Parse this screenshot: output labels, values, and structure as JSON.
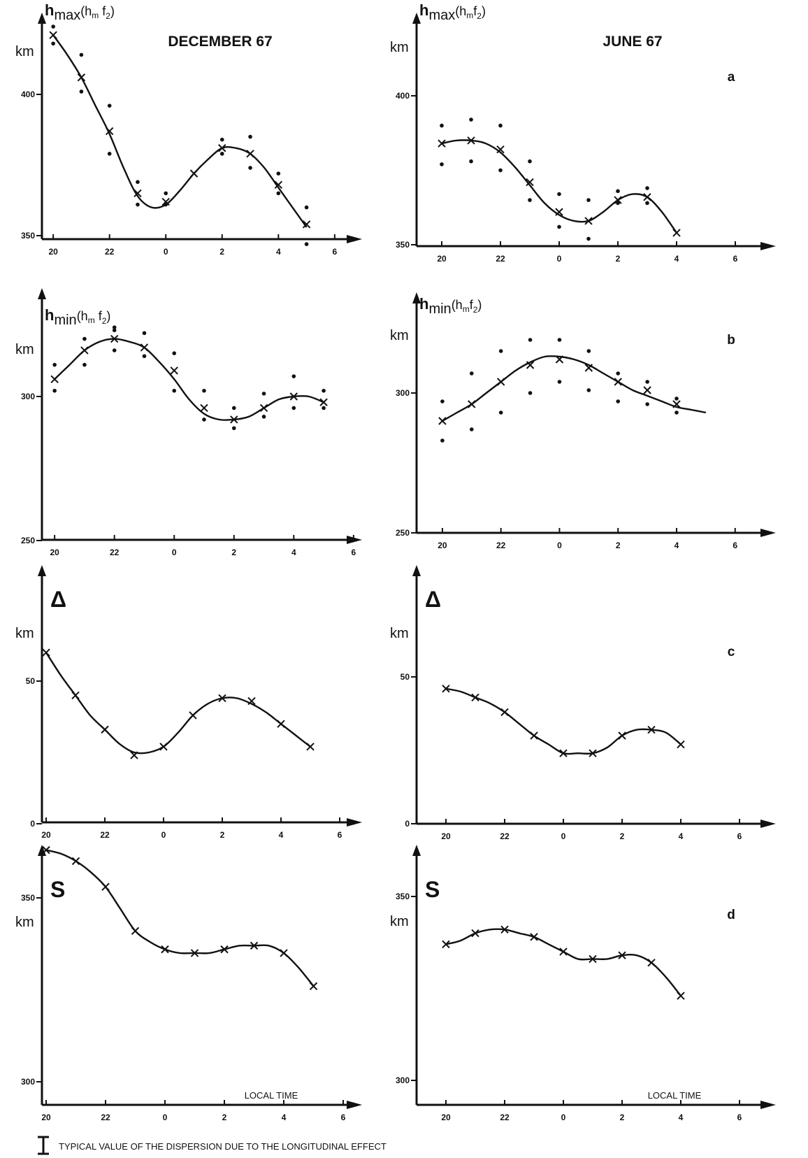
{
  "figure": {
    "footnote_marker": "I",
    "footnote": "TYPICAL VALUE OF THE DISPERSION DUE TO THE LONGITUDINAL EFFECT"
  },
  "chart_data": [
    {
      "id": "dec-a",
      "type": "line",
      "header": "DECEMBER 67",
      "panel_letter": "",
      "ylabel_main": "h",
      "ylabel_sub": "max",
      "ylabel_tail": "(h",
      "ylabel_m": "m",
      "ylabel_f": " f",
      "ylabel_2": "2",
      "ylabel_close": ")",
      "yunit": "km",
      "xlabel": "",
      "x_ticks": [
        "20",
        "22",
        "0",
        "2",
        "4",
        "6"
      ],
      "x_tick_values": [
        20,
        22,
        24,
        26,
        28,
        30
      ],
      "xlim": [
        19.5,
        31.5
      ],
      "y_ticks": [
        "400",
        "350"
      ],
      "y_tick_values": [
        400,
        350
      ],
      "ylim": [
        347,
        423
      ],
      "series": [
        {
          "curve_x": [
            20,
            20.5,
            21,
            21.5,
            22,
            22.5,
            23,
            23.5,
            24,
            24.5,
            25,
            25.5,
            26,
            26.5,
            27,
            27.5,
            28,
            28.5,
            29
          ],
          "curve_y": [
            421,
            414,
            406,
            396,
            386,
            374,
            364,
            360,
            361,
            366,
            372,
            377,
            381,
            381,
            379,
            374,
            367,
            360,
            353
          ],
          "crosses_x": [
            20,
            21,
            22,
            23,
            24,
            25,
            26,
            27,
            28,
            29
          ],
          "crosses_y": [
            421,
            406,
            387,
            365,
            362,
            372,
            381,
            379,
            368,
            354
          ]
        }
      ],
      "scatter": {
        "x": [
          20,
          20,
          21,
          21,
          22,
          22,
          23,
          23,
          24,
          24,
          26,
          26,
          27,
          27,
          28,
          28,
          29,
          29
        ],
        "y": [
          424,
          418,
          414,
          401,
          396,
          379,
          369,
          361,
          365,
          361,
          384,
          379,
          385,
          374,
          372,
          365,
          360,
          347
        ]
      }
    },
    {
      "id": "jun-a",
      "type": "line",
      "header": "JUNE 67",
      "panel_letter": "a",
      "ylabel_main": "h",
      "ylabel_sub": "max",
      "ylabel_tail": "(h",
      "ylabel_m": "m",
      "ylabel_f": "f",
      "ylabel_2": "2",
      "ylabel_close": ")",
      "yunit": "km",
      "xlabel": "",
      "x_ticks": [
        "20",
        "22",
        "0",
        "2",
        "4",
        "6"
      ],
      "x_tick_values": [
        20,
        22,
        24,
        26,
        28,
        30
      ],
      "xlim": [
        19.5,
        31.5
      ],
      "y_ticks": [
        "400",
        "350"
      ],
      "y_tick_values": [
        400,
        350
      ],
      "ylim": [
        349,
        422
      ],
      "series": [
        {
          "curve_x": [
            20,
            20.5,
            21,
            21.5,
            22,
            22.5,
            23,
            23.5,
            24,
            24.5,
            25,
            25.5,
            26,
            26.5,
            27,
            27.5,
            28
          ],
          "curve_y": [
            384,
            385,
            385,
            384,
            381,
            376,
            370,
            364,
            360,
            358,
            358,
            361,
            365,
            367,
            366,
            361,
            354
          ],
          "crosses_x": [
            20,
            21,
            22,
            23,
            24,
            25,
            26,
            27,
            28
          ],
          "crosses_y": [
            384,
            385,
            382,
            371,
            361,
            358,
            365,
            366,
            354
          ]
        }
      ],
      "scatter": {
        "x": [
          20,
          20,
          21,
          21,
          22,
          22,
          23,
          23,
          24,
          24,
          25,
          25,
          26,
          26,
          27,
          27
        ],
        "y": [
          390,
          377,
          392,
          378,
          390,
          375,
          378,
          365,
          367,
          356,
          365,
          352,
          368,
          364,
          369,
          364
        ]
      }
    },
    {
      "id": "dec-b",
      "type": "line",
      "header": "",
      "panel_letter": "",
      "ylabel_main": "h",
      "ylabel_sub": "min",
      "ylabel_tail": "(h",
      "ylabel_m": "m",
      "ylabel_f": " f",
      "ylabel_2": "2",
      "ylabel_close": ")",
      "yunit": "km",
      "xlabel": "",
      "x_ticks": [
        "20",
        "22",
        "0",
        "2",
        "4",
        "6"
      ],
      "x_tick_values": [
        20,
        22,
        24,
        26,
        28,
        30
      ],
      "xlim": [
        19.5,
        31.5
      ],
      "y_ticks": [
        "300",
        "250"
      ],
      "y_tick_values": [
        300,
        250
      ],
      "ylim": [
        250,
        322
      ],
      "series": [
        {
          "curve_x": [
            20,
            20.5,
            21,
            21.5,
            22,
            22.5,
            23,
            23.5,
            24,
            24.5,
            25,
            25.5,
            26,
            26.5,
            27,
            27.5,
            28,
            28.5,
            29
          ],
          "curve_y": [
            306,
            311,
            316,
            319,
            320,
            319,
            317,
            312,
            306,
            299,
            294,
            292,
            292,
            293,
            296,
            299,
            300,
            300,
            298
          ],
          "crosses_x": [
            20,
            21,
            22,
            23,
            24,
            25,
            26,
            27,
            28,
            29
          ],
          "crosses_y": [
            306,
            316,
            320,
            317,
            309,
            296,
            292,
            296,
            300,
            298
          ]
        }
      ],
      "scatter": {
        "x": [
          20,
          20,
          21,
          21,
          22,
          22,
          22,
          23,
          23,
          24,
          24,
          25,
          25,
          26,
          26,
          27,
          27,
          28,
          28,
          29,
          29
        ],
        "y": [
          311,
          302,
          320,
          311,
          324,
          316,
          323,
          322,
          314,
          315,
          302,
          302,
          292,
          296,
          289,
          301,
          293,
          307,
          296,
          302,
          296
        ]
      }
    },
    {
      "id": "jun-b",
      "type": "line",
      "header": "",
      "panel_letter": "b",
      "ylabel_main": "h",
      "ylabel_sub": "min",
      "ylabel_tail": "(h",
      "ylabel_m": "m",
      "ylabel_f": "f",
      "ylabel_2": "2",
      "ylabel_close": ")",
      "yunit": "km",
      "xlabel": "",
      "x_ticks": [
        "20",
        "22",
        "0",
        "2",
        "4",
        "6"
      ],
      "x_tick_values": [
        20,
        22,
        24,
        26,
        28,
        30
      ],
      "xlim": [
        19.5,
        31.5
      ],
      "y_ticks": [
        "300",
        "250"
      ],
      "y_tick_values": [
        300,
        250
      ],
      "ylim": [
        249,
        320
      ],
      "series": [
        {
          "curve_x": [
            20,
            20.5,
            21,
            21.5,
            22,
            22.5,
            23,
            23.5,
            24,
            24.5,
            25,
            25.5,
            26,
            26.5,
            27,
            27.5,
            28,
            28.5,
            29
          ],
          "curve_y": [
            290,
            293,
            296,
            300,
            304,
            308,
            311,
            313,
            313,
            312,
            310,
            307,
            304,
            301,
            299,
            297,
            295,
            294,
            293
          ],
          "crosses_x": [
            20,
            21,
            22,
            23,
            24,
            25,
            26,
            27,
            28
          ],
          "crosses_y": [
            290,
            296,
            304,
            310,
            312,
            309,
            304,
            301,
            296
          ]
        }
      ],
      "scatter": {
        "x": [
          20,
          20,
          21,
          21,
          22,
          22,
          23,
          23,
          24,
          24,
          25,
          25,
          26,
          26,
          27,
          27,
          28,
          28
        ],
        "y": [
          297,
          283,
          307,
          287,
          315,
          293,
          319,
          300,
          319,
          304,
          315,
          301,
          307,
          297,
          304,
          296,
          298,
          293
        ]
      }
    },
    {
      "id": "dec-c",
      "type": "line",
      "header": "",
      "panel_letter": "",
      "ylabel_main": "Δ",
      "yunit": "km",
      "xlabel": "",
      "x_ticks": [
        "20",
        "22",
        "0",
        "2",
        "4",
        "6"
      ],
      "x_tick_values": [
        20,
        22,
        24,
        26,
        28,
        30
      ],
      "xlim": [
        19.5,
        31.5
      ],
      "y_ticks": [
        "50",
        "0"
      ],
      "y_tick_values": [
        50,
        0
      ],
      "ylim": [
        0,
        82
      ],
      "series": [
        {
          "curve_x": [
            20,
            20.5,
            21,
            21.5,
            22,
            22.5,
            23,
            23.5,
            24,
            24.5,
            25,
            25.5,
            26,
            26.5,
            27,
            27.5,
            28,
            28.5,
            29
          ],
          "curve_y": [
            60,
            52,
            45,
            38,
            33,
            28,
            25,
            25,
            27,
            32,
            38,
            42,
            44,
            44,
            42,
            39,
            35,
            31,
            27
          ],
          "crosses_x": [
            20,
            21,
            22,
            23,
            24,
            25,
            26,
            27,
            28,
            29
          ],
          "crosses_y": [
            60,
            45,
            33,
            24,
            27,
            38,
            44,
            43,
            35,
            27
          ]
        }
      ]
    },
    {
      "id": "jun-c",
      "type": "line",
      "header": "",
      "panel_letter": "c",
      "ylabel_main": "Δ",
      "yunit": "km",
      "xlabel": "",
      "x_ticks": [
        "20",
        "22",
        "0",
        "2",
        "4",
        "6"
      ],
      "x_tick_values": [
        20,
        22,
        24,
        26,
        28,
        30
      ],
      "xlim": [
        19.5,
        31.5
      ],
      "y_ticks": [
        "50",
        "0"
      ],
      "y_tick_values": [
        50,
        0
      ],
      "ylim": [
        0,
        82
      ],
      "series": [
        {
          "curve_x": [
            20,
            20.5,
            21,
            21.5,
            22,
            22.5,
            23,
            23.5,
            24,
            24.5,
            25,
            25.5,
            26,
            26.5,
            27,
            27.5,
            28
          ],
          "curve_y": [
            46,
            45,
            43,
            41,
            38,
            34,
            30,
            27,
            24,
            24,
            24,
            26,
            30,
            32,
            32,
            31,
            27
          ],
          "crosses_x": [
            20,
            21,
            22,
            23,
            24,
            25,
            26,
            27,
            28
          ],
          "crosses_y": [
            46,
            43,
            38,
            30,
            24,
            24,
            30,
            32,
            27
          ]
        }
      ]
    },
    {
      "id": "dec-d",
      "type": "line",
      "header": "",
      "panel_letter": "",
      "ylabel_main": "S",
      "yunit": "km",
      "xlabel": "LOCAL   TIME",
      "x_ticks": [
        "20",
        "22",
        "0",
        "2",
        "4",
        "6"
      ],
      "x_tick_values": [
        20,
        22,
        24,
        26,
        28,
        30
      ],
      "xlim": [
        19.5,
        31.5
      ],
      "y_ticks": [
        "350",
        "300"
      ],
      "y_tick_values": [
        350,
        300
      ],
      "ylim": [
        292,
        366
      ],
      "series": [
        {
          "curve_x": [
            20,
            20.5,
            21,
            21.5,
            22,
            22.5,
            23,
            23.5,
            24,
            24.5,
            25,
            25.5,
            26,
            26.5,
            27,
            27.5,
            28,
            28.5,
            29
          ],
          "curve_y": [
            363,
            362,
            360,
            357,
            353,
            347,
            341,
            338,
            336,
            335,
            335,
            335,
            336,
            337,
            337,
            337,
            335,
            331,
            326
          ],
          "crosses_x": [
            20,
            21,
            22,
            23,
            24,
            25,
            26,
            27,
            28,
            29
          ],
          "crosses_y": [
            363,
            360,
            353,
            341,
            336,
            335,
            336,
            337,
            335,
            326
          ]
        }
      ]
    },
    {
      "id": "jun-d",
      "type": "line",
      "header": "",
      "panel_letter": "d",
      "ylabel_main": "S",
      "yunit": "km",
      "xlabel": "LOCAL   TIME",
      "x_ticks": [
        "20",
        "22",
        "0",
        "2",
        "4",
        "6"
      ],
      "x_tick_values": [
        20,
        22,
        24,
        26,
        28,
        30
      ],
      "xlim": [
        19.5,
        31.5
      ],
      "y_ticks": [
        "350",
        "300"
      ],
      "y_tick_values": [
        350,
        300
      ],
      "ylim": [
        290,
        368
      ],
      "series": [
        {
          "curve_x": [
            20,
            20.5,
            21,
            21.5,
            22,
            22.5,
            23,
            23.5,
            24,
            24.5,
            25,
            25.5,
            26,
            26.5,
            27,
            27.5,
            28
          ],
          "curve_y": [
            337,
            338,
            340,
            341,
            341,
            340,
            339,
            337,
            335,
            333,
            333,
            333,
            334,
            334,
            332,
            328,
            323
          ],
          "crosses_x": [
            20,
            21,
            22,
            23,
            24,
            25,
            26,
            27,
            28
          ],
          "crosses_y": [
            337,
            340,
            341,
            339,
            335,
            333,
            334,
            332,
            323
          ]
        }
      ]
    }
  ]
}
